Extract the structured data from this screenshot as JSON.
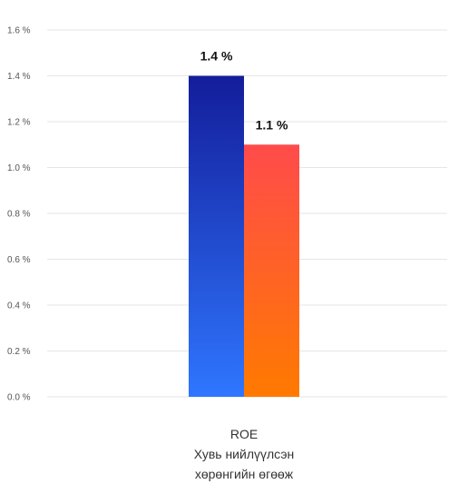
{
  "chart_data": {
    "type": "bar",
    "categories": [
      [
        "ROE",
        "Хувь нийлүүлсэн",
        "хөрөнгийн өгөөж"
      ]
    ],
    "series": [
      {
        "values": [
          1.4
        ],
        "value_labels": [
          "1.4 %"
        ],
        "gradient": [
          "#131d9a",
          "#2f76ff"
        ]
      },
      {
        "values": [
          1.1
        ],
        "value_labels": [
          "1.1 %"
        ],
        "gradient": [
          "#ff4b4b",
          "#ff7a00"
        ]
      }
    ],
    "yticks": [
      "0.0 %",
      "0.2 %",
      "0.4 %",
      "0.6 %",
      "0.8 %",
      "1.0 %",
      "1.2 %",
      "1.4 %",
      "1.6 %"
    ],
    "ylim": [
      0,
      1.6
    ],
    "grid": true,
    "gridColor": "#e6e6e6"
  }
}
